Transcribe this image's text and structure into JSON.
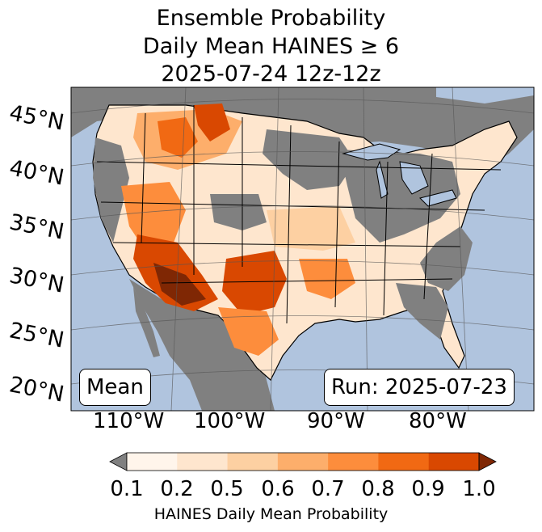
{
  "title": {
    "line1": "Ensemble Probability",
    "line2": "Daily Mean HAINES ≥ 6",
    "line3": "2025-07-24 12z-12z"
  },
  "map": {
    "lat_labels": [
      "45°N",
      "40°N",
      "35°N",
      "30°N",
      "25°N",
      "20°N"
    ],
    "lon_labels": [
      "110°W",
      "100°W",
      "90°W",
      "80°W"
    ],
    "stat_label": "Mean",
    "run_label": "Run: 2025-07-23",
    "colors": {
      "ocean": "#b0c4de",
      "missing": "#808080",
      "lakes": "#b0c4de"
    }
  },
  "colorbar": {
    "ticks": [
      "0.1",
      "0.2",
      "0.5",
      "0.6",
      "0.7",
      "0.8",
      "0.9",
      "1.0"
    ],
    "label": "HAINES Daily Mean Probability",
    "under_color": "#808080",
    "over_color": "#7f2704",
    "colors": [
      "#fff5eb",
      "#fee6ce",
      "#fdd0a2",
      "#fdae6b",
      "#fd8d3c",
      "#f16913",
      "#d94801"
    ]
  }
}
